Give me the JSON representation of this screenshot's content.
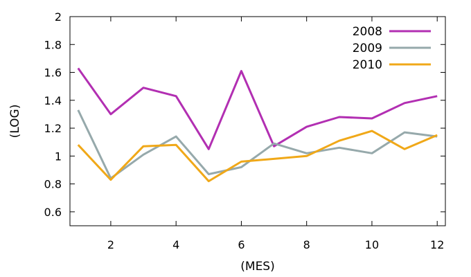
{
  "chart_data": {
    "type": "line",
    "xlabel": "(MES)",
    "ylabel": "(LOG)",
    "xlim": [
      0.75,
      12.25
    ],
    "ylim": [
      0.5,
      2.0
    ],
    "xticks": [
      2,
      4,
      6,
      8,
      10,
      12
    ],
    "xtick_labels": [
      "2",
      "4",
      "6",
      "8",
      "10",
      "12"
    ],
    "yticks": [
      0.6,
      0.8,
      1.0,
      1.2,
      1.4,
      1.6,
      1.8,
      2.0
    ],
    "ytick_labels": [
      "0.6",
      "0.8",
      "1",
      "1.2",
      "1.4",
      "1.6",
      "1.8",
      "2"
    ],
    "grid": false,
    "legend_position": "top-right",
    "x": [
      1,
      2,
      3,
      4,
      5,
      6,
      7,
      8,
      9,
      10,
      11,
      12
    ],
    "series": [
      {
        "name": "2008",
        "color": "#b22fb2",
        "values": [
          1.63,
          1.3,
          1.49,
          1.43,
          1.05,
          1.61,
          1.07,
          1.21,
          1.28,
          1.27,
          1.38,
          1.43
        ]
      },
      {
        "name": "2009",
        "color": "#96a9ab",
        "values": [
          1.33,
          0.84,
          1.01,
          1.14,
          0.87,
          0.92,
          1.09,
          1.02,
          1.06,
          1.02,
          1.17,
          1.14
        ]
      },
      {
        "name": "2010",
        "color": "#f0a818",
        "values": [
          1.08,
          0.83,
          1.07,
          1.08,
          0.82,
          0.96,
          0.98,
          1.0,
          1.11,
          1.18,
          1.05,
          1.15
        ]
      }
    ]
  }
}
